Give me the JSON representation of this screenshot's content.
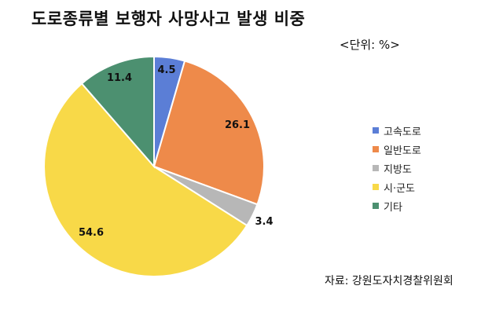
{
  "title": "도로종류별 보행자 사망사고 발생 비중",
  "unit_label": "<단위: %>",
  "source": "자료: 강원도자치경찰위원회",
  "chart_data": {
    "type": "pie",
    "title": "도로종류별 보행자 사망사고 발생 비중",
    "unit": "%",
    "legend_position": "right",
    "slices": [
      {
        "label": "고속도로",
        "value": 4.5,
        "color": "#5B7ED6"
      },
      {
        "label": "일반도로",
        "value": 26.1,
        "color": "#EE8A4A"
      },
      {
        "label": "지방도",
        "value": 3.4,
        "color": "#B7B7B7"
      },
      {
        "label": "시·군도",
        "value": 54.6,
        "color": "#F8D948"
      },
      {
        "label": "기타",
        "value": 11.4,
        "color": "#4C9070"
      }
    ]
  }
}
